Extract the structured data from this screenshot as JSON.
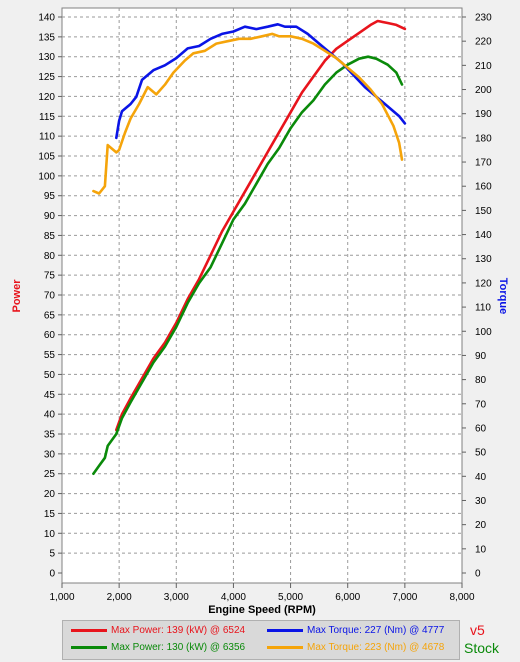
{
  "chart_data": {
    "type": "line",
    "xlabel": "Engine Speed (RPM)",
    "ylabel_left": "Power",
    "ylabel_right": "Torque",
    "xlim": [
      1000,
      8000
    ],
    "ylim_left": [
      0,
      140
    ],
    "ylim_right": [
      0,
      230
    ],
    "x_ticks": [
      1000,
      2000,
      3000,
      4000,
      5000,
      6000,
      7000,
      8000
    ],
    "x_tick_labels": [
      "1,000",
      "2,000",
      "3,000",
      "4,000",
      "5,000",
      "6,000",
      "7,000",
      "8,000"
    ],
    "y_left_ticks": [
      0,
      5,
      10,
      15,
      20,
      25,
      30,
      35,
      40,
      45,
      50,
      55,
      60,
      65,
      70,
      75,
      80,
      85,
      90,
      95,
      100,
      105,
      110,
      115,
      120,
      125,
      130,
      135,
      140
    ],
    "y_right_ticks": [
      0,
      10,
      20,
      30,
      40,
      50,
      60,
      70,
      80,
      90,
      100,
      110,
      120,
      130,
      140,
      150,
      160,
      170,
      180,
      190,
      200,
      210,
      220,
      230
    ],
    "grid": true,
    "series": [
      {
        "name": "Max Power: 139 (kW) @ 6524",
        "axis": "left",
        "color": "#e8141c",
        "x": [
          1950,
          2050,
          2200,
          2400,
          2600,
          2800,
          3000,
          3200,
          3400,
          3600,
          3800,
          4000,
          4200,
          4400,
          4600,
          4800,
          5000,
          5200,
          5400,
          5600,
          5800,
          6000,
          6200,
          6400,
          6524,
          6700,
          6850,
          7000
        ],
        "y": [
          36,
          40,
          44,
          49,
          54,
          58,
          63,
          69,
          74,
          80,
          86,
          91,
          96,
          101,
          106,
          111,
          116,
          121,
          125,
          129,
          132,
          134,
          136,
          138,
          139,
          138.5,
          138,
          137
        ]
      },
      {
        "name": "Max Power: 130 (kW) @ 6356",
        "axis": "left",
        "color": "#0a8a0a",
        "x": [
          1550,
          1650,
          1750,
          1800,
          1950,
          2050,
          2200,
          2400,
          2600,
          2800,
          3000,
          3200,
          3400,
          3600,
          3800,
          4000,
          4200,
          4400,
          4600,
          4800,
          5000,
          5200,
          5400,
          5600,
          5800,
          6000,
          6200,
          6356,
          6500,
          6700,
          6850,
          6950
        ],
        "y": [
          25,
          27,
          29,
          32,
          35,
          39,
          43,
          48,
          53,
          57,
          62,
          68,
          73,
          77,
          83,
          89,
          93,
          98,
          103,
          107,
          112,
          116,
          119,
          123,
          126,
          128,
          129.5,
          130,
          129.5,
          128,
          126,
          123
        ]
      },
      {
        "name": "Max Torque: 227 (Nm) @ 4777",
        "axis": "right",
        "color": "#0a14e6",
        "x": [
          1950,
          2000,
          2050,
          2200,
          2300,
          2400,
          2600,
          2800,
          3000,
          3200,
          3400,
          3600,
          3800,
          4000,
          4200,
          4400,
          4600,
          4777,
          4900,
          5100,
          5300,
          5500,
          5700,
          5900,
          6100,
          6300,
          6500,
          6700,
          6900,
          7000
        ],
        "y": [
          180,
          187,
          191,
          194,
          197,
          204,
          208,
          210,
          213,
          217,
          218,
          221,
          223,
          224,
          226,
          225,
          226,
          227,
          226,
          226,
          223,
          219,
          215,
          211,
          206,
          201,
          197,
          193,
          189,
          186
        ]
      },
      {
        "name": "Max Torque: 223 (Nm) @ 4678",
        "axis": "right",
        "color": "#f5a40a",
        "x": [
          1550,
          1650,
          1750,
          1800,
          1950,
          2000,
          2100,
          2200,
          2350,
          2500,
          2650,
          2800,
          2950,
          3150,
          3300,
          3500,
          3700,
          3900,
          4100,
          4300,
          4500,
          4678,
          4800,
          5000,
          5200,
          5400,
          5600,
          5800,
          6000,
          6200,
          6400,
          6600,
          6800,
          6900,
          6950
        ],
        "y": [
          158,
          157,
          160,
          177,
          174,
          175,
          182,
          188,
          194,
          201,
          198,
          202,
          207,
          212,
          215,
          216,
          219,
          220,
          221,
          221,
          222,
          223,
          222,
          222,
          221,
          219,
          216,
          213,
          209,
          205,
          200,
          194,
          185,
          178,
          171
        ]
      }
    ]
  },
  "legend": {
    "row1_left": "Max Power: 139 (kW) @ 6524",
    "row1_right": "Max Torque: 227 (Nm) @ 4777",
    "row2_left": "Max Power: 130 (kW) @ 6356",
    "row2_right": "Max Torque: 223 (Nm) @ 4678",
    "colors": {
      "row1_left": "#e8141c",
      "row1_right": "#0a14e6",
      "row2_left": "#0a8a0a",
      "row2_right": "#f5a40a"
    }
  },
  "runs": {
    "v5": {
      "label": "v5",
      "color": "#e8141c"
    },
    "stock": {
      "label": "Stock",
      "color": "#0a8a0a"
    }
  }
}
